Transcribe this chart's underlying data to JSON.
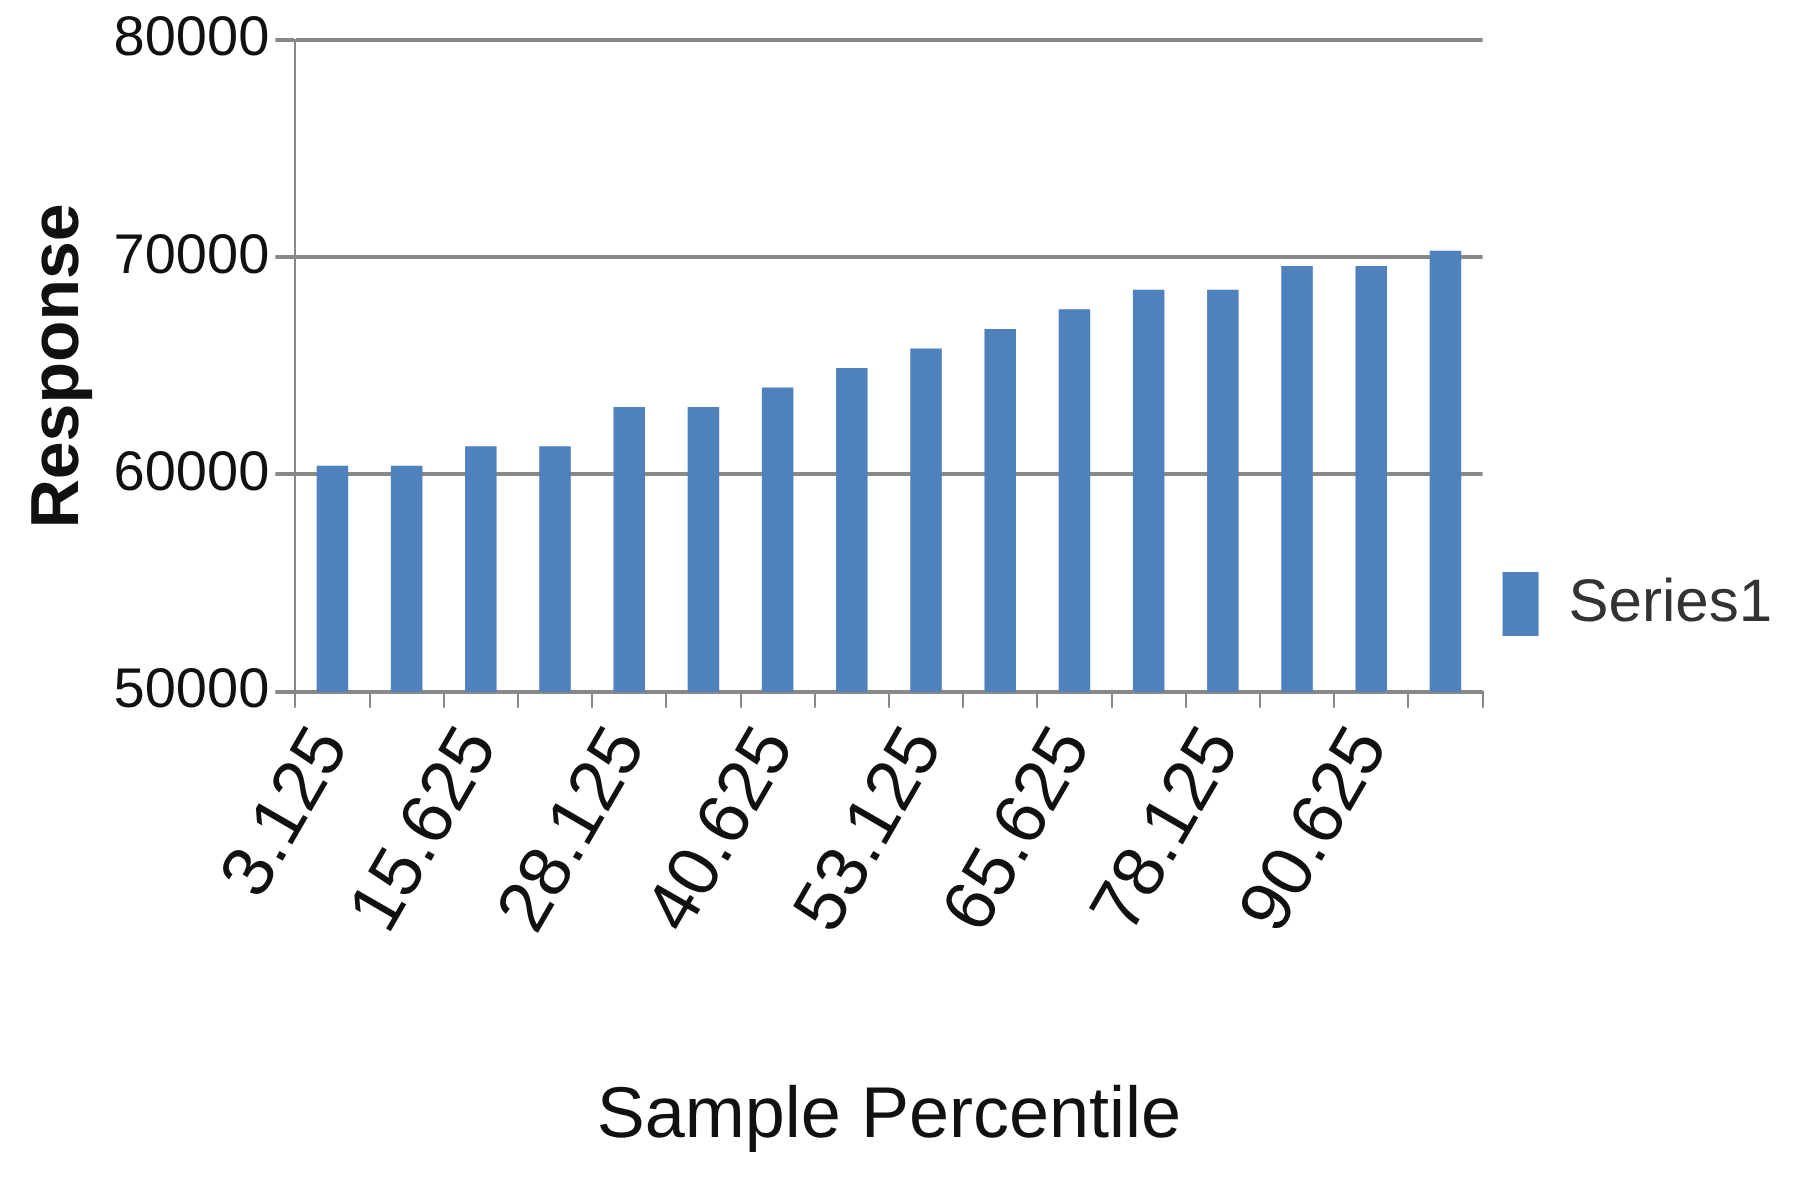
{
  "chart_data": {
    "type": "bar",
    "xlabel": "Sample Percentile",
    "ylabel": "Response",
    "categories": [
      "3.125",
      null,
      "15.625",
      null,
      "28.125",
      null,
      "40.625",
      null,
      "53.125",
      null,
      "65.625",
      null,
      "78.125",
      null,
      "90.625",
      null
    ],
    "series": [
      {
        "name": "Series1",
        "color": "#4f81bd",
        "values": [
          60400,
          60400,
          61300,
          61300,
          63100,
          63100,
          64000,
          64900,
          65800,
          66700,
          67600,
          68500,
          68500,
          69600,
          69600,
          70300
        ]
      }
    ],
    "ylim": [
      50000,
      80000
    ],
    "yticks": [
      50000,
      60000,
      70000,
      80000
    ],
    "grid": "y",
    "legend": "right"
  }
}
